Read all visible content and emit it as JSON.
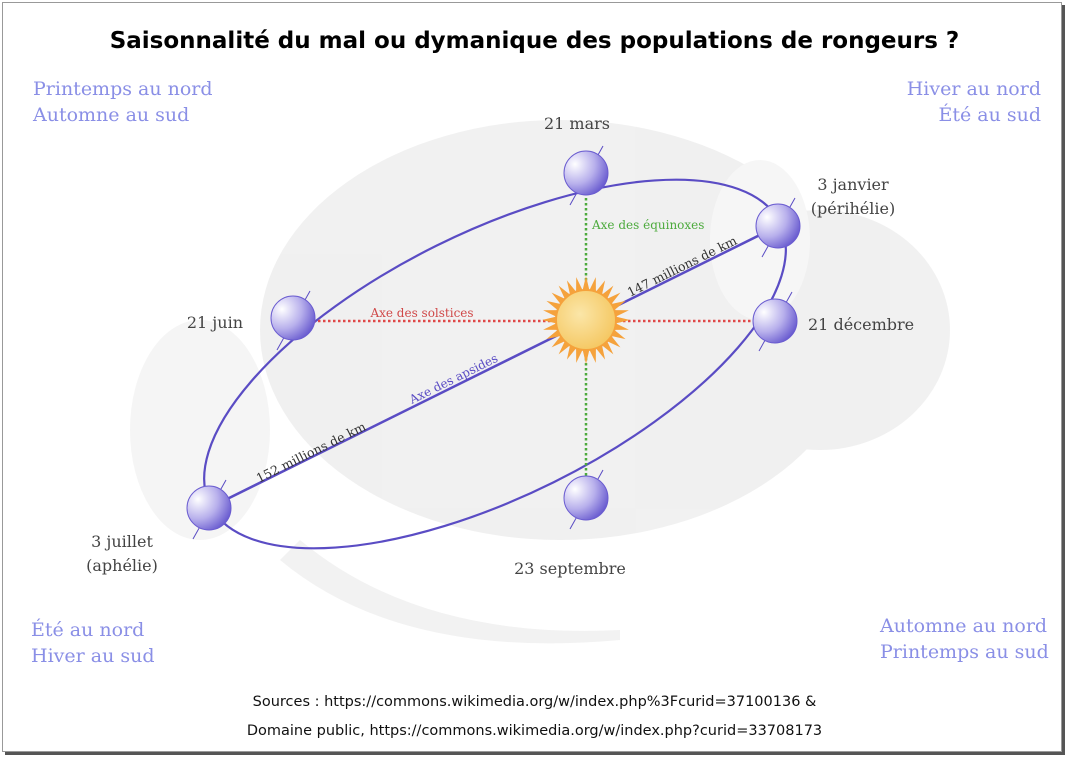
{
  "title": "Saisonnalité du mal ou dymanique des populations de rongeurs ?",
  "seasons": {
    "top_left": [
      "Printemps au nord",
      "Automne au sud"
    ],
    "top_right": [
      "Hiver au nord",
      "Été au sud"
    ],
    "bottom_left": [
      "Été au nord",
      "Hiver au sud"
    ],
    "bottom_right": [
      "Automne au nord",
      "Printemps au sud"
    ]
  },
  "orbit": {
    "march": "21 mars",
    "january": [
      "3 janvier",
      "(périhélie)"
    ],
    "december": "21 décembre",
    "june": "21 juin",
    "july": [
      "3 juillet",
      "(aphélie)"
    ],
    "september": "23 septembre",
    "axis_equinoxes": "Axe des équinoxes",
    "axis_solstices": "Axe des solstices",
    "axis_apsides": "Axe des apsides",
    "perihelion_distance": "147 millions de km",
    "aphelion_distance": "152 millions de km"
  },
  "sources": [
    "Sources :  https://commons.wikimedia.org/w/index.php%3Fcurid=37100136 &",
    "Domaine public, https://commons.wikimedia.org/w/index.php?curid=33708173"
  ],
  "colors": {
    "orbit": "#5a4cc4",
    "solstice": "#e04848",
    "equinox": "#4caa3c",
    "season": "#8a8fe6",
    "sun": "#f5a23c"
  }
}
